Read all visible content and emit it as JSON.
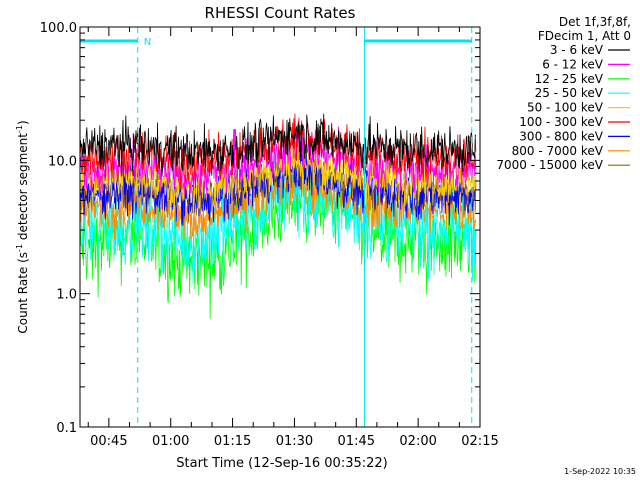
{
  "chart_data": {
    "type": "line",
    "title": "RHESSI Count Rates",
    "xlabel": "Start Time (12-Sep-16 00:35:22)",
    "ylabel": "Count Rate (s",
    "ylabel_sup1": "-1",
    "ylabel_mid": " detector segment",
    "ylabel_sup2": "-1",
    "ylabel_end": ")",
    "yscale": "log",
    "ylim": [
      0.1,
      100.0
    ],
    "xlim_minutes": [
      38,
      135
    ],
    "x_tick_labels": [
      {
        "label": "00:45",
        "minute": 45
      },
      {
        "label": "01:00",
        "minute": 60
      },
      {
        "label": "01:15",
        "minute": 75
      },
      {
        "label": "01:30",
        "minute": 90
      },
      {
        "label": "01:45",
        "minute": 105
      },
      {
        "label": "02:00",
        "minute": 120
      },
      {
        "label": "02:15",
        "minute": 135
      }
    ],
    "y_tick_labels": [
      {
        "label": "100.0",
        "value": 100
      },
      {
        "label": "10.0",
        "value": 10
      },
      {
        "label": "1.0",
        "value": 1
      },
      {
        "label": "0.1",
        "value": 0.1
      }
    ],
    "data_minutes": [
      38,
      134
    ],
    "legend": {
      "header1": "Det 1f,3f,8f,",
      "header2": "FDecim 1, Att 0"
    },
    "series": [
      {
        "name": "3 - 6 keV",
        "color": "#000000",
        "profile": [
          [
            38,
            12.5
          ],
          [
            52,
            13
          ],
          [
            65,
            11.5
          ],
          [
            75,
            12
          ],
          [
            90,
            16
          ],
          [
            105,
            13
          ],
          [
            120,
            12
          ],
          [
            134,
            12
          ]
        ]
      },
      {
        "name": "6 - 12 keV",
        "color": "#ff00ff",
        "profile": [
          [
            38,
            8.5
          ],
          [
            52,
            9
          ],
          [
            65,
            7.5
          ],
          [
            75,
            8.5
          ],
          [
            90,
            13
          ],
          [
            105,
            9.5
          ],
          [
            120,
            8.5
          ],
          [
            134,
            8.5
          ]
        ]
      },
      {
        "name": "12 - 25 keV",
        "color": "#00ff00",
        "profile": [
          [
            38,
            2.2
          ],
          [
            52,
            2.8
          ],
          [
            62,
            1.8
          ],
          [
            70,
            1.8
          ],
          [
            80,
            3
          ],
          [
            90,
            5.8
          ],
          [
            100,
            4.5
          ],
          [
            112,
            2.5
          ],
          [
            125,
            2.5
          ],
          [
            134,
            2.4
          ]
        ]
      },
      {
        "name": "25 - 50 keV",
        "color": "#00ffff",
        "profile": [
          [
            38,
            3
          ],
          [
            52,
            3.5
          ],
          [
            62,
            2.6
          ],
          [
            70,
            2.8
          ],
          [
            80,
            3.8
          ],
          [
            90,
            6.5
          ],
          [
            102,
            4.5
          ],
          [
            112,
            3.2
          ],
          [
            125,
            3.2
          ],
          [
            134,
            3
          ]
        ]
      },
      {
        "name": "50 - 100 keV",
        "color": "#ffcc00",
        "profile": [
          [
            38,
            7
          ],
          [
            52,
            7.5
          ],
          [
            65,
            6
          ],
          [
            75,
            6.8
          ],
          [
            90,
            10
          ],
          [
            105,
            7.5
          ],
          [
            120,
            7
          ],
          [
            134,
            7
          ]
        ]
      },
      {
        "name": "100 - 300 keV",
        "color": "#ff0000",
        "profile": [
          [
            38,
            10.5
          ],
          [
            52,
            11.5
          ],
          [
            65,
            9.5
          ],
          [
            75,
            10.5
          ],
          [
            90,
            16
          ],
          [
            105,
            11.5
          ],
          [
            120,
            10.5
          ],
          [
            134,
            10.5
          ]
        ]
      },
      {
        "name": "300 - 800 keV",
        "color": "#0000ff",
        "profile": [
          [
            38,
            5.5
          ],
          [
            52,
            6
          ],
          [
            65,
            4.8
          ],
          [
            75,
            5.5
          ],
          [
            90,
            8.5
          ],
          [
            105,
            6
          ],
          [
            120,
            5.5
          ],
          [
            134,
            5.5
          ]
        ]
      },
      {
        "name": "800 - 7000 keV",
        "color": "#ff8800",
        "profile": [
          [
            38,
            4.2
          ],
          [
            52,
            4.8
          ],
          [
            65,
            3.6
          ],
          [
            75,
            4.2
          ],
          [
            90,
            7
          ],
          [
            105,
            4.8
          ],
          [
            120,
            4.2
          ],
          [
            134,
            4.2
          ]
        ]
      },
      {
        "name": "7000 - 15000 keV",
        "color": "#996600",
        "profile": [
          [
            38,
            6
          ],
          [
            52,
            6.5
          ],
          [
            65,
            5.2
          ],
          [
            75,
            6
          ],
          [
            90,
            9
          ],
          [
            105,
            6.5
          ],
          [
            120,
            6
          ],
          [
            134,
            6
          ]
        ]
      }
    ],
    "spike": {
      "minute": 75.5,
      "peak": 17
    },
    "attenuator_markers": [
      {
        "minute": 38,
        "style": "solid",
        "color": "#00e5ee"
      },
      {
        "minute": 52,
        "style": "dashed",
        "color": "#00e5ee"
      },
      {
        "minute": 107,
        "style": "solid",
        "color": "#00e5ee"
      },
      {
        "minute": 133,
        "style": "dashed",
        "color": "#00e5ee"
      }
    ],
    "night_bars": [
      {
        "start_minute": 38,
        "end_minute": 52,
        "label": "N"
      },
      {
        "start_minute": 107,
        "end_minute": 133,
        "label": ""
      }
    ],
    "footer_timestamp": "1-Sep-2022 10:35"
  }
}
